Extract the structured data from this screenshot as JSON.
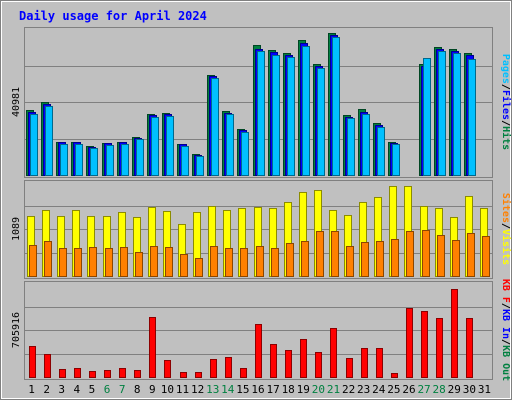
{
  "chart_data": {
    "type": "bar",
    "title": "Daily usage for April 2024",
    "days": [
      {
        "label": "1",
        "weekend": false
      },
      {
        "label": "2",
        "weekend": false
      },
      {
        "label": "3",
        "weekend": false
      },
      {
        "label": "4",
        "weekend": false
      },
      {
        "label": "5",
        "weekend": false
      },
      {
        "label": "6",
        "weekend": true
      },
      {
        "label": "7",
        "weekend": true
      },
      {
        "label": "8",
        "weekend": false
      },
      {
        "label": "9",
        "weekend": false
      },
      {
        "label": "10",
        "weekend": false
      },
      {
        "label": "11",
        "weekend": false
      },
      {
        "label": "12",
        "weekend": false
      },
      {
        "label": "13",
        "weekend": true
      },
      {
        "label": "14",
        "weekend": true
      },
      {
        "label": "15",
        "weekend": false
      },
      {
        "label": "16",
        "weekend": false
      },
      {
        "label": "17",
        "weekend": false
      },
      {
        "label": "18",
        "weekend": false
      },
      {
        "label": "19",
        "weekend": false
      },
      {
        "label": "20",
        "weekend": true
      },
      {
        "label": "21",
        "weekend": true
      },
      {
        "label": "22",
        "weekend": false
      },
      {
        "label": "23",
        "weekend": false
      },
      {
        "label": "24",
        "weekend": false
      },
      {
        "label": "25",
        "weekend": false
      },
      {
        "label": "26",
        "weekend": false
      },
      {
        "label": "27",
        "weekend": true
      },
      {
        "label": "28",
        "weekend": true
      },
      {
        "label": "29",
        "weekend": false
      },
      {
        "label": "30",
        "weekend": false
      },
      {
        "label": "31",
        "weekend": false
      }
    ],
    "panels": [
      {
        "id": "hits",
        "max_label": "40981",
        "max": 40981,
        "legend": [
          {
            "text": "Pages",
            "color": "#00c0ff"
          },
          {
            "text": "Files",
            "color": "#0000ff"
          },
          {
            "text": "Hits",
            "color": "#008040"
          }
        ],
        "series": [
          {
            "name": "Hits",
            "color": "#008040",
            "values": [
              18300,
              20500,
              9400,
              9400,
              8100,
              9100,
              9400,
              10700,
              17100,
              17500,
              8800,
              5800,
              28200,
              18000,
              12800,
              36400,
              35100,
              34200,
              38000,
              31200,
              39900,
              16900,
              18400,
              14500,
              9300,
              null,
              31200,
              35800,
              35500,
              34300,
              null
            ]
          },
          {
            "name": "Files",
            "color": "#0000ff",
            "values": [
              17800,
              20000,
              9200,
              9200,
              7900,
              8900,
              9200,
              10400,
              16800,
              17200,
              8600,
              5700,
              27800,
              17500,
              12500,
              35500,
              34400,
              33600,
              37000,
              30600,
              39300,
              16400,
              17800,
              14000,
              9100,
              null,
              30500,
              35400,
              34900,
              33600,
              null
            ]
          },
          {
            "name": "Pages",
            "color": "#00c0ff",
            "values": [
              17200,
              19400,
              8800,
              8800,
              7500,
              8500,
              8800,
              10100,
              16300,
              16700,
              8200,
              5400,
              27100,
              17000,
              12000,
              34800,
              33800,
              33000,
              36300,
              30000,
              38600,
              15900,
              17200,
              13500,
              8700,
              null,
              32800,
              34700,
              34300,
              32700,
              null
            ]
          }
        ]
      },
      {
        "id": "visits",
        "max_label": "1089",
        "max": 1089,
        "legend": [
          {
            "text": "Sites",
            "color": "#ff8000"
          },
          {
            "text": "Visits",
            "color": "#ffff00"
          }
        ],
        "series": [
          {
            "name": "Visits",
            "color": "#ffff00",
            "values": [
              690,
              770,
              690,
              770,
              700,
              690,
              740,
              680,
              800,
              750,
              600,
              740,
              810,
              770,
              790,
              800,
              790,
              860,
              970,
              1000,
              770,
              710,
              860,
              910,
              1040,
              1040,
              810,
              790,
              680,
              930,
              790
            ]
          },
          {
            "name": "Sites",
            "color": "#ff8000",
            "values": [
              360,
              400,
              330,
              330,
              340,
              320,
              340,
              280,
              350,
              340,
              250,
              210,
              350,
              320,
              330,
              350,
              330,
              380,
              410,
              520,
              520,
              350,
              390,
              410,
              430,
              520,
              530,
              470,
              420,
              500,
              460
            ]
          }
        ]
      },
      {
        "id": "kbytes",
        "max_label": "705916",
        "max": 705916,
        "legend": [
          {
            "text": "KB F",
            "color": "#ff0000"
          },
          {
            "text": "KB In",
            "color": "#0000ff"
          },
          {
            "text": "KB Out",
            "color": "#008040"
          }
        ],
        "series": [
          {
            "name": "KB F",
            "color": "#ff0000",
            "values": [
              233000,
              170000,
              60000,
              64000,
              45000,
              52000,
              64000,
              56000,
              453000,
              125000,
              40000,
              34000,
              135000,
              150000,
              71000,
              398000,
              250000,
              205000,
              285000,
              185000,
              370000,
              140000,
              220000,
              220000,
              28000,
              518000,
              493000,
              440000,
              660000,
              443000,
              null
            ]
          }
        ]
      }
    ]
  }
}
